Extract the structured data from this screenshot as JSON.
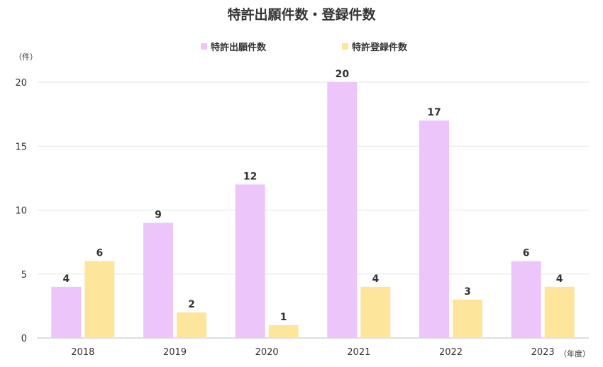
{
  "chart_data": {
    "type": "bar",
    "title": "特許出願件数・登録件数",
    "ylabel": "（件）",
    "xunit": "（年度）",
    "categories": [
      "2018",
      "2019",
      "2020",
      "2021",
      "2022",
      "2023"
    ],
    "series": [
      {
        "name": "特許出願件数",
        "values": [
          4,
          9,
          12,
          20,
          17,
          6
        ],
        "color": "#ecc6fb"
      },
      {
        "name": "特許登録件数",
        "values": [
          6,
          2,
          1,
          4,
          3,
          4
        ],
        "color": "#fde59b"
      }
    ],
    "ylim": [
      0,
      20
    ],
    "yticks": [
      0,
      5,
      10,
      15,
      20
    ],
    "grid": true,
    "legend": "top-center",
    "show_data_labels": true
  }
}
